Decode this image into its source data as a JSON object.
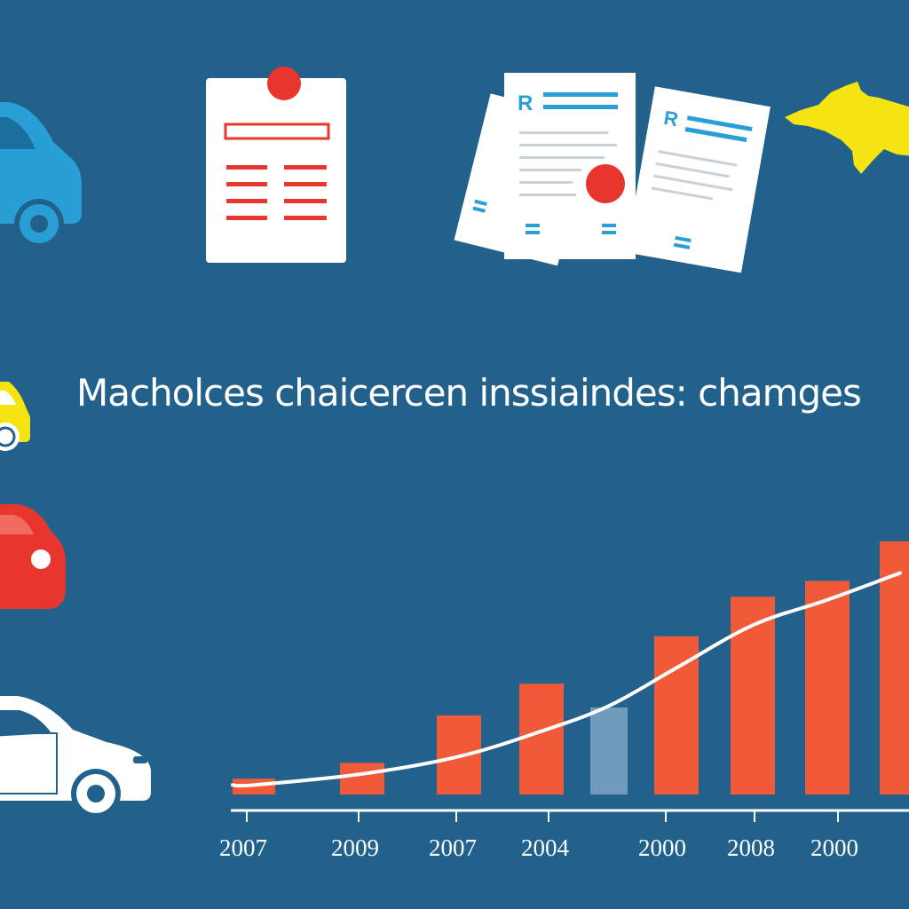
{
  "headline": "Macholces chaicercen inssiaindes: chamges",
  "document_icon_letter": "R",
  "colors": {
    "background": "#21618b",
    "bar": "#f05a38",
    "bar_highlight": "#7fa6c4",
    "trend_line": "#ffffff",
    "doc_red": "#e8352e",
    "doc_blue": "#2a9fd6",
    "car_blue": "#2a9fd6",
    "car_yellow": "#f4e512",
    "car_red": "#e8352e",
    "car_white": "#ffffff",
    "map_yellow": "#f4e512"
  },
  "icons": {
    "left_column": [
      "blue-car-icon",
      "yellow-car-icon",
      "red-car-icon",
      "white-car-icon"
    ],
    "top_row": [
      "clipboard-document-icon",
      "stacked-documents-icon",
      "map-region-icon"
    ]
  },
  "chart_data": {
    "type": "bar",
    "title": "",
    "xlabel": "",
    "ylabel": "",
    "categories": [
      "2007",
      "2009",
      "2007",
      "2004",
      "",
      "2000",
      "2008",
      "2000",
      ""
    ],
    "series": [
      {
        "values": [
          1,
          2,
          5,
          7,
          5.5,
          10,
          12.5,
          13.5,
          16
        ]
      }
    ],
    "highlighted_index": 4,
    "trend_line": [
      0.6,
      1.3,
      2.4,
      4,
      5.6,
      8,
      10.7,
      12.3,
      14
    ],
    "ylim": [
      0,
      17
    ],
    "grid": false,
    "legend": "none"
  }
}
